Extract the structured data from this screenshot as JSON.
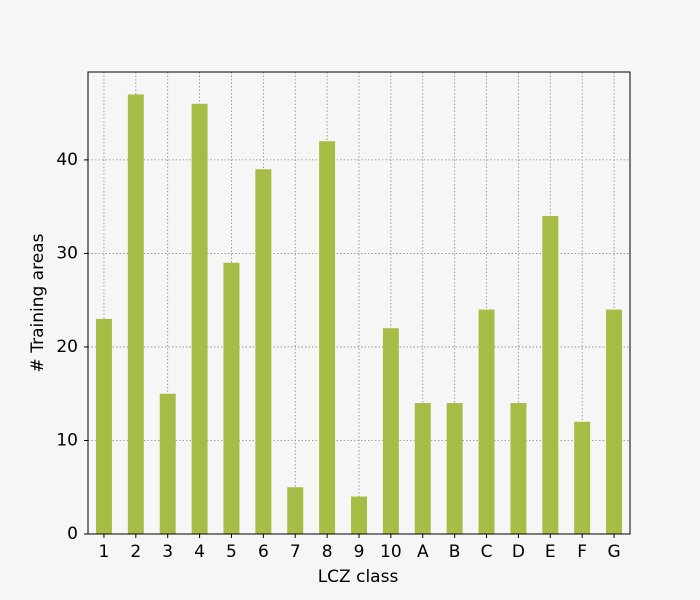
{
  "chart_data": {
    "type": "bar",
    "x_label": "LCZ class",
    "y_label": "# Training areas",
    "categories": [
      "1",
      "2",
      "3",
      "4",
      "5",
      "6",
      "7",
      "8",
      "9",
      "10",
      "A",
      "B",
      "C",
      "D",
      "E",
      "F",
      "G"
    ],
    "values": [
      23,
      47,
      15,
      46,
      29,
      39,
      5,
      42,
      4,
      22,
      14,
      14,
      24,
      14,
      34,
      12,
      24
    ],
    "color": "#a5bc45",
    "ylim": [
      0,
      49.4
    ],
    "yticks": [
      0,
      10,
      20,
      30,
      40
    ],
    "grid": true
  }
}
